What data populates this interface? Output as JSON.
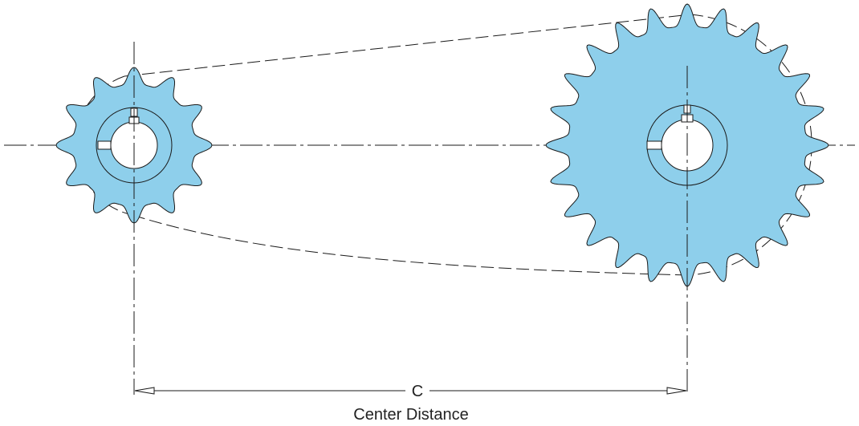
{
  "diagram": {
    "dimension_label": "C",
    "caption": "Center Distance"
  },
  "sprockets": [
    {
      "name": "small",
      "teeth": 12
    },
    {
      "name": "large",
      "teeth": 24
    }
  ],
  "colors": {
    "sprocket_fill": "#8ecfeb",
    "line": "#1a1a1a",
    "background": "#ffffff"
  }
}
